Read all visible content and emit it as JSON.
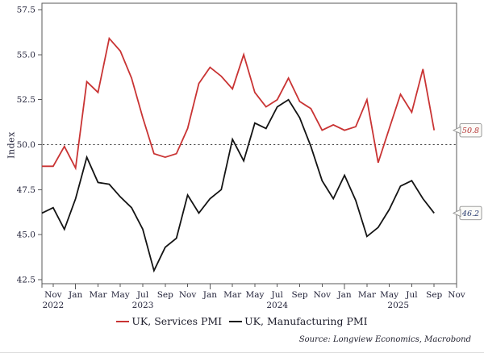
{
  "chart_data": {
    "type": "line",
    "title": "",
    "ylabel": "Index",
    "ylim": [
      42.5,
      57.5
    ],
    "y_ticks": [
      "57.5",
      "55.0",
      "52.5",
      "50.0",
      "47.5",
      "45.0",
      "42.5"
    ],
    "y_tick_values": [
      57.5,
      55.0,
      52.5,
      50.0,
      47.5,
      45.0,
      42.5
    ],
    "reference_line": {
      "value": 50.0,
      "style": "dotted",
      "color": "#3f3f3f"
    },
    "grid": false,
    "legend_position": "bottom-center",
    "x": [
      "Oct 2022",
      "Nov 2022",
      "Dec 2022",
      "Jan 2023",
      "Feb 2023",
      "Mar 2023",
      "Apr 2023",
      "May 2023",
      "Jun 2023",
      "Jul 2023",
      "Aug 2023",
      "Sep 2023",
      "Oct 2023",
      "Nov 2023",
      "Dec 2023",
      "Jan 2024",
      "Feb 2024",
      "Mar 2024",
      "Apr 2024",
      "May 2024",
      "Jun 2024",
      "Jul 2024",
      "Aug 2024",
      "Sep 2024",
      "Oct 2024",
      "Nov 2024",
      "Dec 2024",
      "Jan 2025",
      "Feb 2025",
      "Mar 2025",
      "Apr 2025",
      "May 2025",
      "Jun 2025",
      "Jul 2025",
      "Aug 2025",
      "Sep 2025"
    ],
    "x_axis": {
      "months_span": 37,
      "tick_labels": [
        {
          "label": "Nov",
          "pos": 1
        },
        {
          "label": "Jan",
          "pos": 3
        },
        {
          "label": "Mar",
          "pos": 5
        },
        {
          "label": "May",
          "pos": 7
        },
        {
          "label": "Jul",
          "pos": 9
        },
        {
          "label": "Sep",
          "pos": 11
        },
        {
          "label": "Nov",
          "pos": 13
        },
        {
          "label": "Jan",
          "pos": 15
        },
        {
          "label": "Mar",
          "pos": 17
        },
        {
          "label": "May",
          "pos": 19
        },
        {
          "label": "Jul",
          "pos": 21
        },
        {
          "label": "Sep",
          "pos": 23
        },
        {
          "label": "Nov",
          "pos": 25
        },
        {
          "label": "Jan",
          "pos": 27
        },
        {
          "label": "Mar",
          "pos": 29
        },
        {
          "label": "May",
          "pos": 31
        },
        {
          "label": "Jul",
          "pos": 33
        },
        {
          "label": "Sep",
          "pos": 35
        },
        {
          "label": "Nov",
          "pos": 37
        }
      ],
      "year_labels": [
        {
          "label": "2022",
          "pos": 1
        },
        {
          "label": "2023",
          "pos": 9
        },
        {
          "label": "2024",
          "pos": 21
        },
        {
          "label": "2025",
          "pos": 31.8
        }
      ]
    },
    "series": [
      {
        "name": "UK, Services PMI",
        "color": "#c93434",
        "callout_color": "#b43232",
        "last_value_label": "50.8",
        "values": [
          48.8,
          48.8,
          49.9,
          48.7,
          53.5,
          52.9,
          55.9,
          55.2,
          53.7,
          51.5,
          49.5,
          49.3,
          49.5,
          50.9,
          53.4,
          54.3,
          53.8,
          53.1,
          55.0,
          52.9,
          52.1,
          52.5,
          53.7,
          52.4,
          52.0,
          50.8,
          51.1,
          50.8,
          51.0,
          52.5,
          49.0,
          50.9,
          52.8,
          51.8,
          54.2,
          50.8
        ]
      },
      {
        "name": "UK, Manufacturing PMI",
        "color": "#141414",
        "callout_color": "#23366b",
        "last_value_label": "46.2",
        "values": [
          46.2,
          46.5,
          45.3,
          47.0,
          49.3,
          47.9,
          47.8,
          47.1,
          46.5,
          45.3,
          43.0,
          44.3,
          44.8,
          47.2,
          46.2,
          47.0,
          47.5,
          50.3,
          49.1,
          51.2,
          50.9,
          52.1,
          52.5,
          51.5,
          49.9,
          48.0,
          47.0,
          48.3,
          46.9,
          44.9,
          45.4,
          46.4,
          47.7,
          48.0,
          47.0,
          46.2
        ]
      }
    ]
  },
  "source": {
    "text": "Source: Longview Economics, Macrobond"
  }
}
